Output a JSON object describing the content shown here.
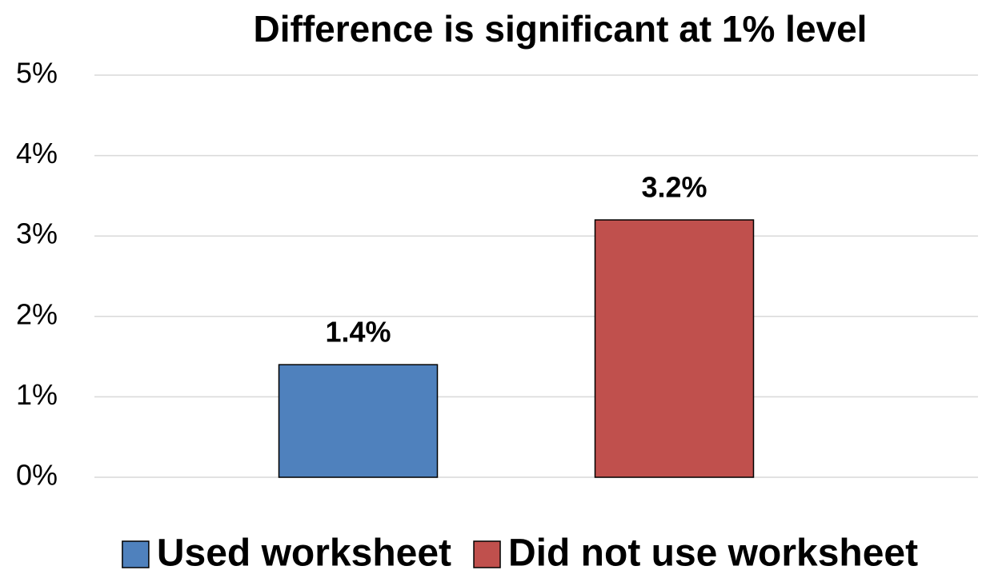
{
  "chart_data": {
    "type": "bar",
    "title": "Difference is significant at 1% level",
    "categories": [
      null
    ],
    "series": [
      {
        "name": "Used worksheet",
        "color": "#4f81bd",
        "values": [
          1.4
        ],
        "value_labels": [
          "1.4%"
        ]
      },
      {
        "name": "Did not use worksheet",
        "color": "#c0504d",
        "values": [
          3.2
        ],
        "value_labels": [
          "3.2%"
        ]
      }
    ],
    "ylim": [
      0,
      5
    ],
    "yticks": [
      {
        "value": 0,
        "label": "0%"
      },
      {
        "value": 1,
        "label": "1%"
      },
      {
        "value": 2,
        "label": "2%"
      },
      {
        "value": 3,
        "label": "3%"
      },
      {
        "value": 4,
        "label": "4%"
      },
      {
        "value": 5,
        "label": "5%"
      }
    ],
    "grid": true,
    "legend": "bottom"
  }
}
